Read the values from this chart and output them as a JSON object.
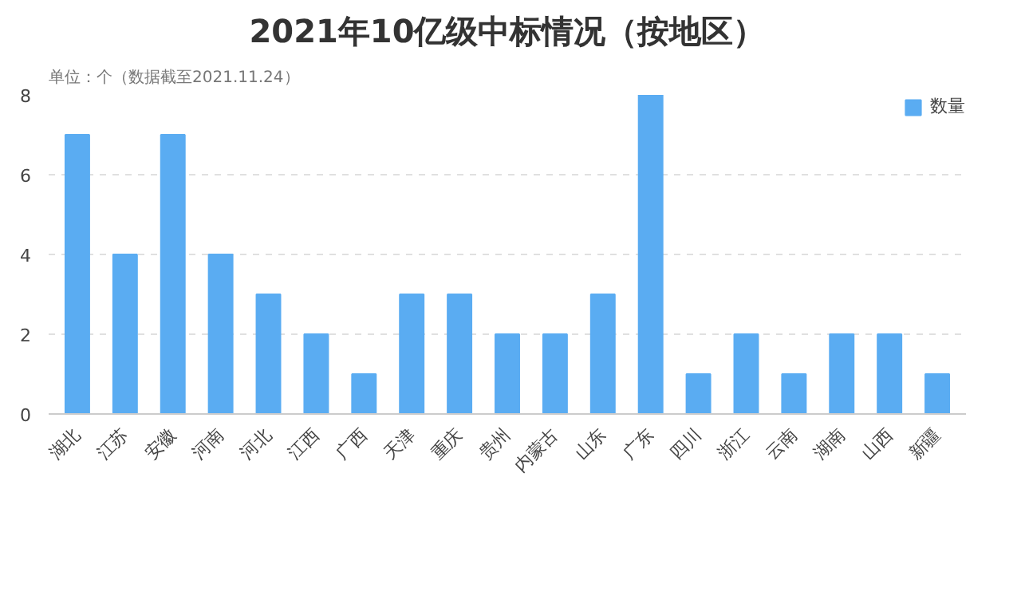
{
  "chart_data": {
    "type": "bar",
    "title": "2021年10亿级中标情况（按地区）",
    "subtitle": "单位：个（数据截至2021.11.24）",
    "categories": [
      "湖北",
      "江苏",
      "安徽",
      "河南",
      "河北",
      "江西",
      "广西",
      "天津",
      "重庆",
      "贵州",
      "内蒙古",
      "山东",
      "广东",
      "四川",
      "浙江",
      "云南",
      "湖南",
      "山西",
      "新疆"
    ],
    "series": [
      {
        "name": "数量",
        "color": "#5aacf2",
        "values": [
          7,
          4,
          7,
          4,
          3,
          2,
          1,
          3,
          3,
          2,
          2,
          3,
          8,
          1,
          2,
          1,
          2,
          2,
          1
        ]
      }
    ],
    "ylim": [
      0,
      8
    ],
    "yticks": [
      0,
      2,
      4,
      6,
      8
    ],
    "grid": "y",
    "legend": "top right"
  }
}
